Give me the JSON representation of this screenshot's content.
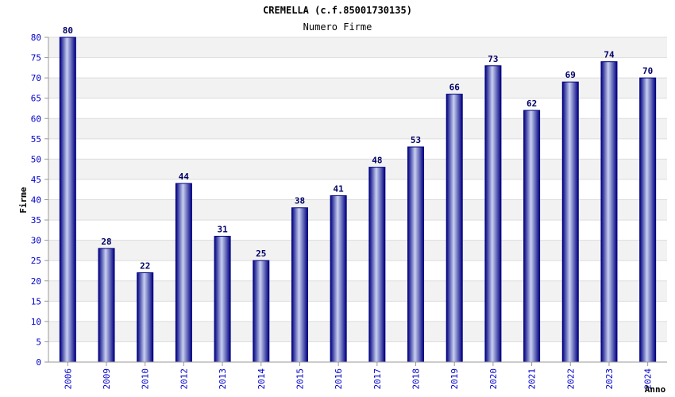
{
  "chart_data": {
    "type": "bar",
    "title": "CREMELLA (c.f.85001730135)",
    "subtitle": "Numero Firme",
    "xlabel": "Anno",
    "ylabel": "Firme",
    "categories": [
      "2006",
      "2009",
      "2010",
      "2012",
      "2013",
      "2014",
      "2015",
      "2016",
      "2017",
      "2018",
      "2019",
      "2020",
      "2021",
      "2022",
      "2023",
      "2024"
    ],
    "values": [
      80,
      28,
      22,
      44,
      31,
      25,
      38,
      41,
      48,
      53,
      66,
      73,
      62,
      69,
      74,
      70
    ],
    "ylim": [
      0,
      80
    ],
    "ytick_step": 5,
    "grid": true,
    "colors": {
      "bar_edge": "#000080",
      "bar_mid": "#c8d0f0",
      "band": "#f2f2f2",
      "gridline": "#dddddd",
      "tick_text": "#0000cc",
      "value_text": "#000066"
    }
  }
}
